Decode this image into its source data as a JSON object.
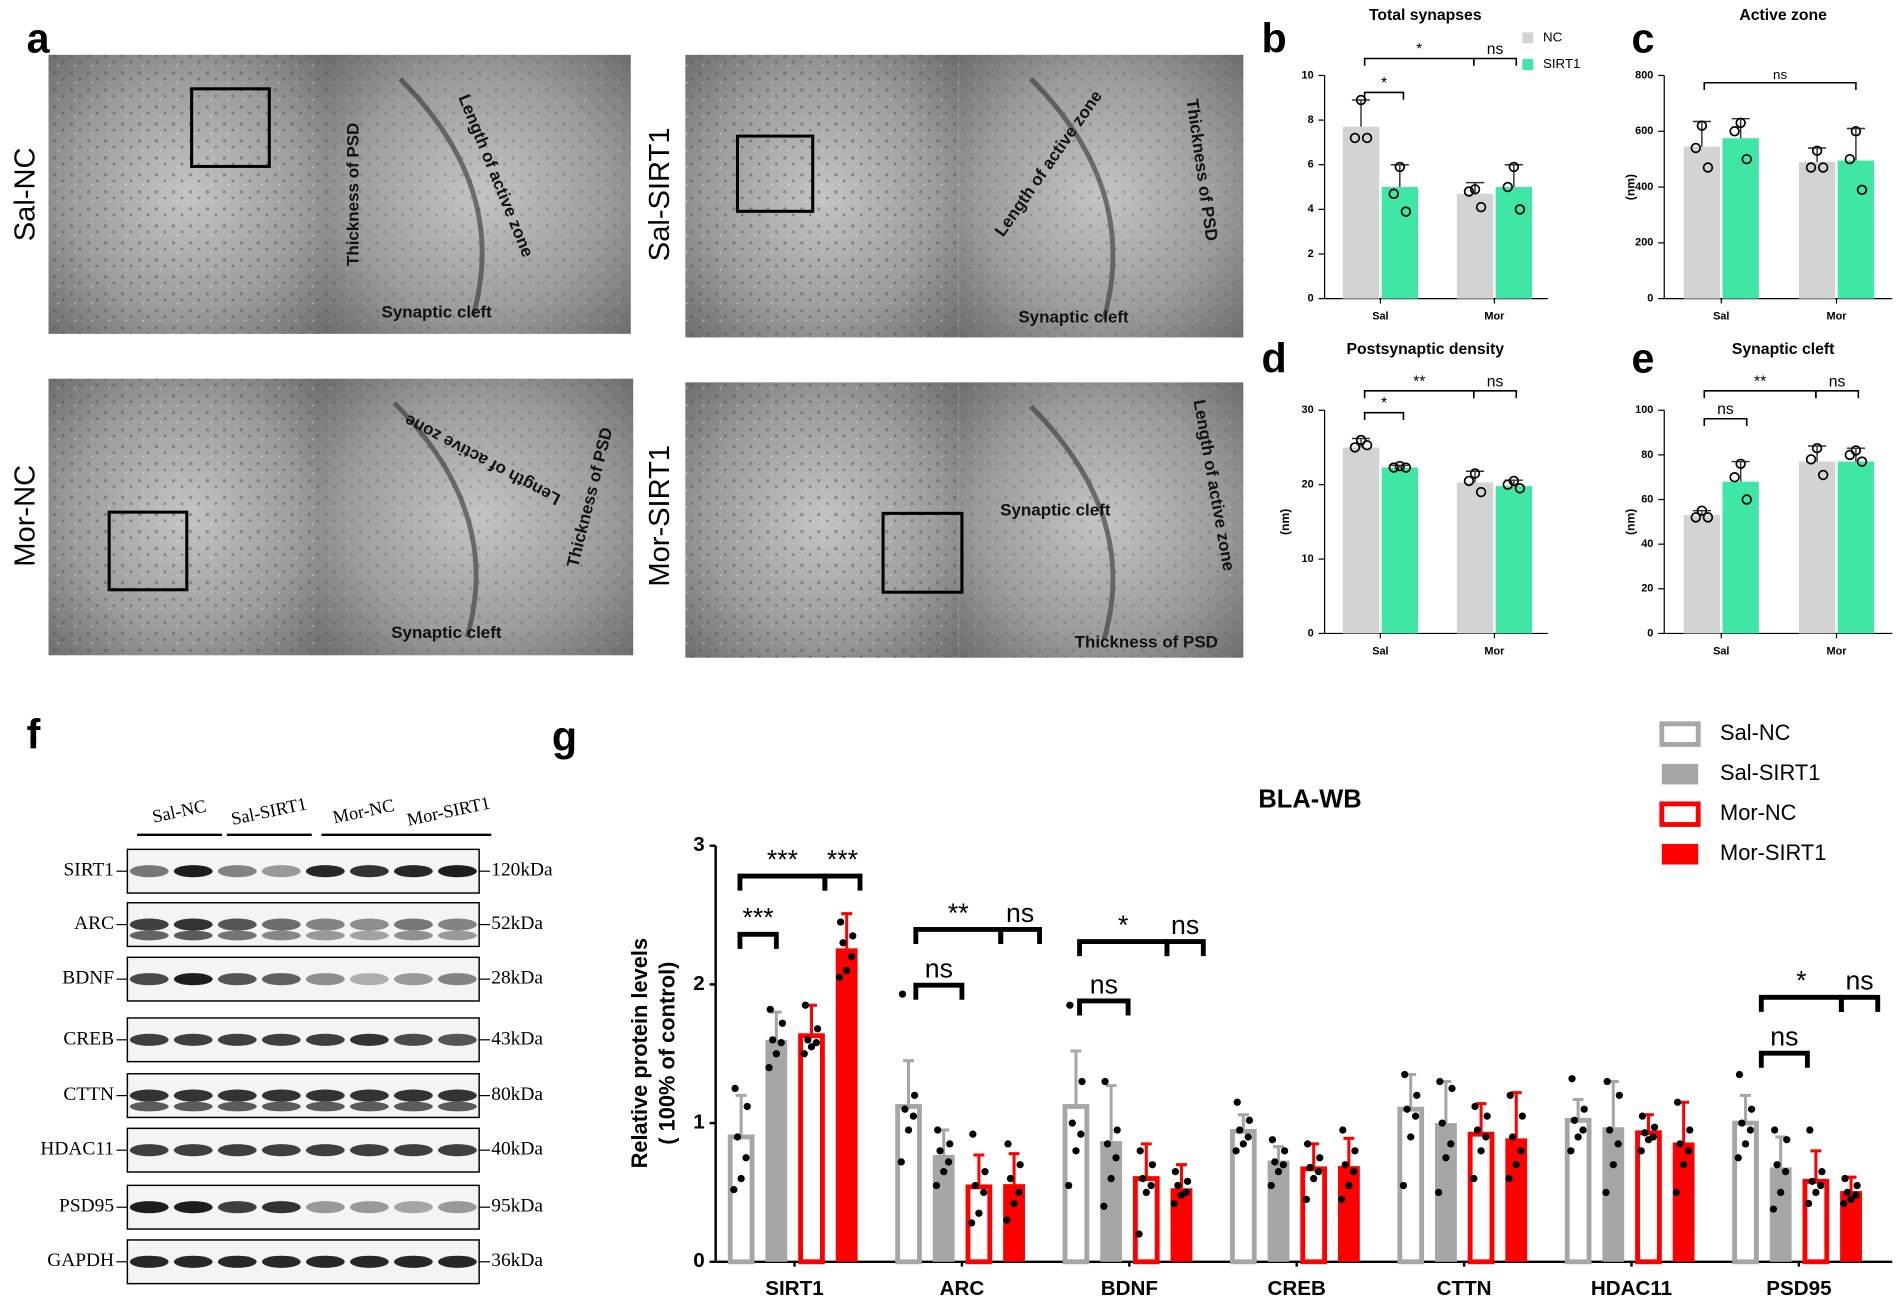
{
  "panel_labels": [
    "a",
    "b",
    "c",
    "d",
    "e",
    "f",
    "g"
  ],
  "micrographs": [
    {
      "label": "Sal-NC",
      "notes": [
        "Thickness of PSD",
        "Length of active zone",
        "Synaptic cleft"
      ]
    },
    {
      "label": "Sal-SIRT1",
      "notes": [
        "Length of active zone",
        "Thickness of PSD",
        "Synaptic cleft"
      ]
    },
    {
      "label": "Mor-NC",
      "notes": [
        "Length of active zone",
        "Thickness of PSD",
        "Synaptic cleft"
      ]
    },
    {
      "label": "Mor-SIRT1",
      "notes": [
        "Synaptic cleft",
        "Length of active zone",
        "Thickness of PSD"
      ]
    }
  ],
  "western_blot": {
    "groups": [
      "Sal-NC",
      "Sal-SIRT1",
      "Mor-NC",
      "Mor-SIRT1"
    ],
    "proteins": [
      {
        "name": "SIRT1",
        "size": "120kDa"
      },
      {
        "name": "ARC",
        "size": "52kDa"
      },
      {
        "name": "BDNF",
        "size": "28kDa"
      },
      {
        "name": "CREB",
        "size": "43kDa"
      },
      {
        "name": "CTTN",
        "size": "80kDa"
      },
      {
        "name": "HDAC11",
        "size": "40kDa"
      },
      {
        "name": "PSD95",
        "size": "95kDa"
      },
      {
        "name": "GAPDH",
        "size": "36kDa"
      }
    ]
  },
  "chart_data": [
    {
      "type": "bar",
      "title": "Total synapses",
      "categories": [
        "Sal",
        "Mor"
      ],
      "legend": "right",
      "series": [
        {
          "name": "NC",
          "color": "#d3d3d3",
          "values": [
            7.7,
            4.7
          ],
          "errors": [
            1.2,
            0.5
          ],
          "points": [
            [
              8.9,
              7.2,
              7.2
            ],
            [
              4.9,
              4.8,
              4.1
            ]
          ]
        },
        {
          "name": "SIRT1",
          "color": "#3fe6a6",
          "values": [
            5.0,
            5.0
          ],
          "errors": [
            1.0,
            1.0
          ],
          "points": [
            [
              5.9,
              4.7,
              3.9
            ],
            [
              5.9,
              5.0,
              4.0
            ]
          ]
        }
      ],
      "ylim": [
        0,
        10
      ],
      "yticks": [
        0,
        2,
        4,
        6,
        8,
        10
      ],
      "annotations": [
        "*",
        "*",
        "ns"
      ]
    },
    {
      "type": "bar",
      "title": "Active zone",
      "y_label": "(nm)",
      "categories": [
        "Sal",
        "Mor"
      ],
      "series": [
        {
          "color": "#d3d3d3",
          "values": [
            545,
            490
          ],
          "errors": [
            90,
            50
          ],
          "points": [
            [
              620,
              540,
              470
            ],
            [
              530,
              470,
              470
            ]
          ]
        },
        {
          "color": "#3fe6a6",
          "values": [
            575,
            495
          ],
          "errors": [
            70,
            115
          ],
          "points": [
            [
              630,
              600,
              500
            ],
            [
              600,
              500,
              390
            ]
          ]
        }
      ],
      "ylim": [
        0,
        800
      ],
      "yticks": [
        0,
        200,
        400,
        600,
        800
      ],
      "annotations": [
        "ns"
      ]
    },
    {
      "type": "bar",
      "title": "Postsynaptic density",
      "y_label": "(nm)",
      "categories": [
        "Sal",
        "Mor"
      ],
      "series": [
        {
          "color": "#d3d3d3",
          "values": [
            25,
            20.3
          ],
          "errors": [
            1.2,
            1.5
          ],
          "points": [
            [
              26,
              25,
              25.3
            ],
            [
              21.5,
              20.5,
              19
            ]
          ]
        },
        {
          "color": "#3fe6a6",
          "values": [
            22.3,
            19.8
          ],
          "errors": [
            0.3,
            0.8
          ],
          "points": [
            [
              22.5,
              22.3,
              22.3
            ],
            [
              20.5,
              20,
              19.5
            ]
          ]
        }
      ],
      "ylim": [
        0,
        30
      ],
      "yticks": [
        0,
        10,
        20,
        30
      ],
      "annotations": [
        "*",
        "**",
        "ns"
      ]
    },
    {
      "type": "bar",
      "title": "Synaptic cleft",
      "y_label": "(nm)",
      "categories": [
        "Sal",
        "Mor"
      ],
      "series": [
        {
          "color": "#d3d3d3",
          "values": [
            53,
            77
          ],
          "errors": [
            2,
            7
          ],
          "points": [
            [
              55,
              52,
              52
            ],
            [
              83,
              78,
              71
            ]
          ]
        },
        {
          "color": "#3fe6a6",
          "values": [
            68,
            77
          ],
          "errors": [
            9,
            6
          ],
          "points": [
            [
              76,
              70,
              60
            ],
            [
              82,
              80,
              77
            ]
          ]
        }
      ],
      "ylim": [
        0,
        100
      ],
      "yticks": [
        0,
        20,
        40,
        60,
        80,
        100
      ],
      "annotations": [
        "ns",
        "**",
        "ns"
      ]
    },
    {
      "type": "bar",
      "title": "BLA-WB",
      "y_label": [
        "Relative protein levels",
        "( 100% of control)"
      ],
      "legend": "top-right",
      "categories": [
        "SIRT1",
        "ARC",
        "BDNF",
        "CREB",
        "CTTN",
        "HDAC11",
        "PSD95"
      ],
      "series": [
        {
          "name": "Sal-NC",
          "color": "#a6a6a6",
          "style": "outline",
          "values": [
            0.9,
            1.12,
            1.12,
            0.94,
            1.1,
            1.02,
            1.0
          ],
          "errors": [
            0.3,
            0.33,
            0.4,
            0.12,
            0.25,
            0.15,
            0.2
          ],
          "points": [
            [
              1.25,
              1.12,
              0.9,
              0.75,
              0.6,
              0.52
            ],
            [
              1.93,
              1.2,
              1.1,
              1.05,
              0.95,
              0.72
            ],
            [
              1.85,
              1.3,
              1.0,
              0.92,
              0.8,
              0.55
            ],
            [
              1.15,
              1.02,
              0.95,
              0.9,
              0.85,
              0.8
            ],
            [
              1.35,
              1.2,
              1.1,
              1.05,
              0.9,
              0.55
            ],
            [
              1.32,
              1.1,
              1.02,
              0.95,
              0.9,
              0.8
            ],
            [
              1.35,
              1.1,
              1.0,
              0.95,
              0.85,
              0.75
            ]
          ]
        },
        {
          "name": "Sal-SIRT1",
          "color": "#a6a6a6",
          "style": "solid",
          "values": [
            1.6,
            0.77,
            0.87,
            0.73,
            1.0,
            0.97,
            0.68
          ],
          "errors": [
            0.2,
            0.18,
            0.4,
            0.1,
            0.3,
            0.33,
            0.22
          ],
          "points": [
            [
              1.82,
              1.72,
              1.6,
              1.58,
              1.5,
              1.4
            ],
            [
              0.95,
              0.85,
              0.8,
              0.72,
              0.65,
              0.55
            ],
            [
              1.3,
              0.95,
              0.85,
              0.75,
              0.6,
              0.4
            ],
            [
              0.88,
              0.8,
              0.72,
              0.7,
              0.65,
              0.55
            ],
            [
              1.3,
              1.25,
              1.0,
              0.85,
              0.75,
              0.5
            ],
            [
              1.3,
              1.2,
              0.95,
              0.85,
              0.7,
              0.5
            ],
            [
              0.95,
              0.88,
              0.7,
              0.65,
              0.5,
              0.38
            ]
          ]
        },
        {
          "name": "Mor-NC",
          "color": "#ff0000",
          "style": "outline",
          "values": [
            1.63,
            0.54,
            0.6,
            0.67,
            0.92,
            0.93,
            0.58
          ],
          "errors": [
            0.22,
            0.23,
            0.25,
            0.18,
            0.22,
            0.13,
            0.22
          ],
          "points": [
            [
              1.85,
              1.68,
              1.6,
              1.58,
              1.55,
              1.5
            ],
            [
              0.92,
              0.65,
              0.55,
              0.5,
              0.35,
              0.28
            ],
            [
              0.8,
              0.7,
              0.6,
              0.55,
              0.5,
              0.2
            ],
            [
              0.85,
              0.75,
              0.68,
              0.65,
              0.6,
              0.45
            ],
            [
              1.12,
              1.05,
              0.95,
              0.9,
              0.8,
              0.6
            ],
            [
              1.05,
              0.97,
              0.93,
              0.9,
              0.88,
              0.8
            ],
            [
              0.95,
              0.65,
              0.58,
              0.55,
              0.5,
              0.42
            ]
          ]
        },
        {
          "name": "Mor-SIRT1",
          "color": "#ff0000",
          "style": "solid",
          "values": [
            2.26,
            0.56,
            0.53,
            0.69,
            0.89,
            0.86,
            0.51
          ],
          "errors": [
            0.25,
            0.22,
            0.17,
            0.2,
            0.33,
            0.29,
            0.1
          ],
          "points": [
            [
              2.45,
              2.35,
              2.3,
              2.2,
              2.1,
              2.05
            ],
            [
              0.85,
              0.7,
              0.6,
              0.5,
              0.42,
              0.3
            ],
            [
              0.65,
              0.58,
              0.55,
              0.5,
              0.48,
              0.42
            ],
            [
              0.95,
              0.8,
              0.7,
              0.65,
              0.55,
              0.45
            ],
            [
              1.2,
              1.05,
              0.9,
              0.8,
              0.7,
              0.6
            ],
            [
              1.15,
              0.95,
              0.85,
              0.8,
              0.7,
              0.5
            ],
            [
              0.6,
              0.55,
              0.5,
              0.48,
              0.45,
              0.42
            ]
          ]
        }
      ],
      "ylim": [
        0,
        3
      ],
      "yticks": [
        0,
        1,
        2,
        3
      ],
      "annotations": [
        "***",
        "***",
        "***",
        "ns",
        "**",
        "ns",
        "ns",
        "*",
        "ns",
        "ns",
        "*",
        "ns"
      ]
    }
  ]
}
